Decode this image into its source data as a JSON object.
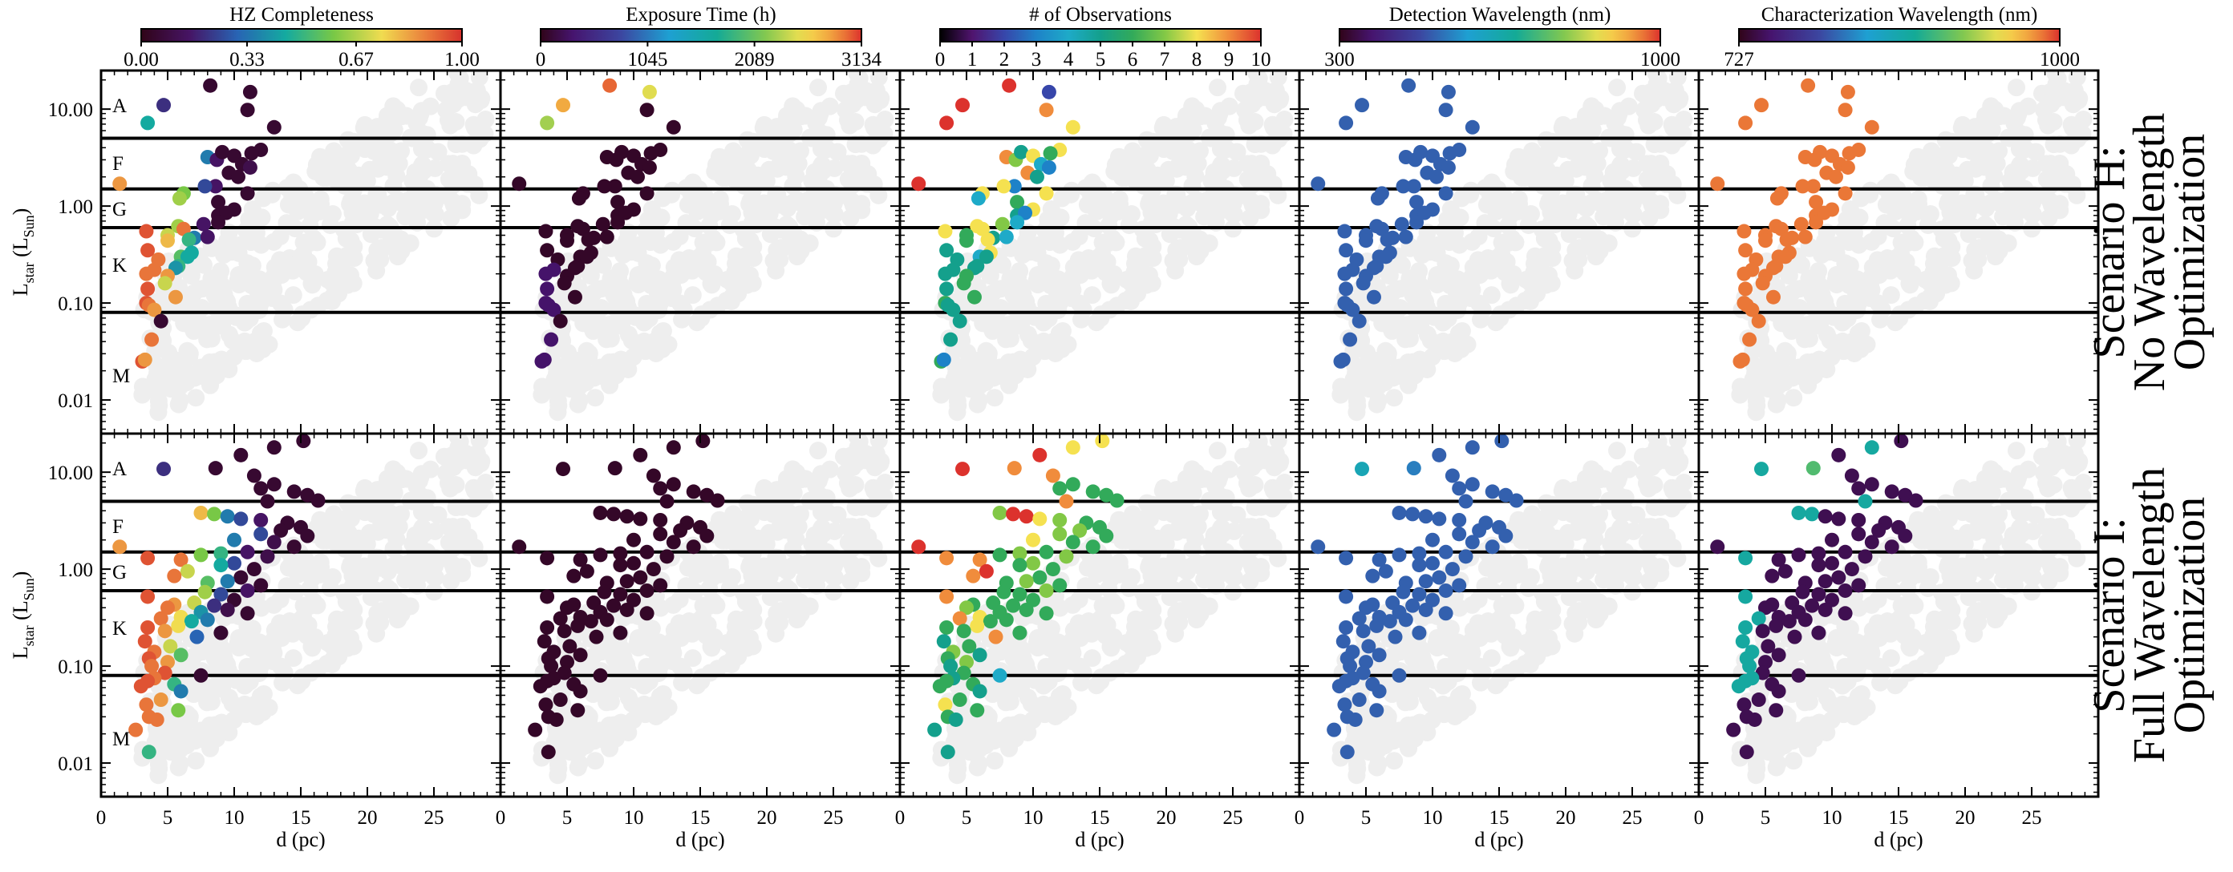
{
  "chart_data": {
    "type": "scatter",
    "description_axes": {
      "xlabel": "d (pc)",
      "ylabel_main": "L",
      "ylabel_star_sub": "star",
      "ylabel_unit_open": " (L",
      "ylabel_unit_sub": "Sun",
      "ylabel_unit_close": ")",
      "xlim": [
        0,
        30
      ],
      "ylim": [
        0.0045,
        25
      ],
      "yscale": "log",
      "x_ticks": [
        0,
        5,
        10,
        15,
        20,
        25
      ],
      "x_tick_labels": [
        "0",
        "5",
        "10",
        "15",
        "20",
        "25"
      ],
      "y_ticks": [
        10,
        1,
        0.1,
        0.01
      ],
      "y_tick_labels": [
        "10.00",
        "1.00",
        "0.10",
        "0.01"
      ]
    },
    "spectral_bands": {
      "boundaries_Lsun": [
        5.0,
        1.5,
        0.6,
        0.08
      ],
      "labels": [
        {
          "text": "A",
          "y": 11.0
        },
        {
          "text": "F",
          "y": 2.8
        },
        {
          "text": "G",
          "y": 0.95
        },
        {
          "text": "K",
          "y": 0.25
        },
        {
          "text": "M",
          "y": 0.018
        }
      ]
    },
    "rows": [
      {
        "title_lines": [
          "Scenario H:",
          "No Wavelength",
          "Optimization"
        ],
        "scenario": "H"
      },
      {
        "title_lines": [
          "Scenario I:",
          "Full Wavelength",
          "Optimization"
        ],
        "scenario": "I"
      }
    ],
    "panels": [
      {
        "title": "HZ Completeness",
        "colormap": "hzc",
        "range": [
          0,
          1
        ],
        "ticks": [
          "0.00",
          "0.33",
          "0.67",
          "1.00"
        ],
        "tick_values": [
          0,
          0.33,
          0.67,
          1.0
        ]
      },
      {
        "title": "Exposure Time (h)",
        "colormap": "rainbow",
        "range": [
          0,
          3134
        ],
        "ticks": [
          "0",
          "1045",
          "2089",
          "3134"
        ],
        "tick_values": [
          0,
          1045,
          2089,
          3134
        ]
      },
      {
        "title": "# of Observations",
        "colormap": "obs",
        "range": [
          0,
          10
        ],
        "ticks": [
          "0",
          "1",
          "2",
          "3",
          "4",
          "5",
          "6",
          "7",
          "8",
          "9",
          "10"
        ],
        "tick_values": [
          0,
          1,
          2,
          3,
          4,
          5,
          6,
          7,
          8,
          9,
          10
        ]
      },
      {
        "title": "Detection Wavelength (nm)",
        "colormap": "rainbow",
        "range": [
          300,
          1000
        ],
        "ticks": [
          "300",
          "1000"
        ],
        "tick_values": [
          300,
          1000
        ]
      },
      {
        "title": "Characterization Wavelength (nm)",
        "colormap": "rainbow",
        "range": [
          727,
          1000
        ],
        "ticks": [
          "727",
          "1000"
        ],
        "tick_values": [
          727,
          1000
        ]
      }
    ],
    "scenario_H_targets": {
      "d_pc": [
        8.2,
        11.2,
        4.7,
        3.5,
        11.0,
        13.0,
        12.0,
        11.3,
        8.0,
        8.7,
        9.1,
        10.0,
        10.6,
        11.2,
        1.4,
        9.6,
        10.3,
        8.6,
        11.0,
        7.8,
        6.2,
        5.9,
        8.8,
        10.0,
        8.8,
        9.4,
        3.4,
        8.8,
        5.8,
        7.7,
        6.2,
        5.0,
        7.0,
        6.6,
        8.0,
        5.0,
        6.8,
        6.0,
        6.5,
        4.3,
        5.8,
        3.5,
        5.6,
        5.0,
        4.0,
        3.4,
        4.8,
        3.5,
        5.6,
        3.4,
        3.6,
        4.0,
        4.5,
        3.8,
        3.1,
        3.3
      ],
      "L_sun": [
        17.5,
        15.0,
        11.0,
        7.2,
        9.8,
        6.5,
        3.8,
        3.5,
        3.2,
        3.0,
        3.6,
        3.3,
        2.7,
        2.5,
        1.7,
        2.2,
        2.0,
        1.6,
        1.35,
        1.6,
        1.35,
        1.2,
        1.1,
        0.92,
        0.8,
        0.85,
        0.55,
        0.68,
        0.62,
        0.65,
        0.58,
        0.5,
        0.47,
        0.45,
        0.48,
        0.44,
        0.33,
        0.3,
        0.3,
        0.28,
        0.24,
        0.35,
        0.23,
        0.19,
        0.22,
        0.2,
        0.16,
        0.14,
        0.115,
        0.1,
        0.095,
        0.085,
        0.065,
        0.042,
        0.025,
        0.026
      ],
      "hz_completeness": [
        0.05,
        0.05,
        0.2,
        0.45,
        0.05,
        0.05,
        0.05,
        0.05,
        0.35,
        0.15,
        0.05,
        0.05,
        0.05,
        0.1,
        0.85,
        0.05,
        0.05,
        0.15,
        0.05,
        0.25,
        0.6,
        0.65,
        0.05,
        0.05,
        0.05,
        0.05,
        0.95,
        0.05,
        0.65,
        0.15,
        0.9,
        0.7,
        0.35,
        0.5,
        0.15,
        0.8,
        0.45,
        0.55,
        0.45,
        0.9,
        0.5,
        0.95,
        0.4,
        0.85,
        0.9,
        0.9,
        0.7,
        0.95,
        0.85,
        0.95,
        0.9,
        0.85,
        0.05,
        0.9,
        0.95,
        0.85
      ],
      "exposure_time_h": [
        3000,
        2500,
        2800,
        2300,
        60,
        60,
        60,
        60,
        60,
        60,
        60,
        60,
        60,
        60,
        60,
        60,
        60,
        60,
        60,
        60,
        60,
        60,
        60,
        60,
        60,
        60,
        60,
        60,
        60,
        60,
        60,
        60,
        60,
        60,
        60,
        60,
        60,
        60,
        60,
        60,
        60,
        60,
        60,
        60,
        300,
        300,
        60,
        300,
        60,
        300,
        300,
        300,
        60,
        300,
        300,
        300
      ],
      "n_obs": [
        10,
        2,
        10,
        10,
        9,
        8,
        8,
        6,
        9,
        7,
        5,
        8,
        4,
        3,
        10,
        9,
        5,
        3,
        8,
        8,
        8,
        4,
        6,
        8,
        5,
        3,
        8,
        4,
        8,
        7,
        8,
        6,
        5,
        8,
        4,
        6,
        8,
        4,
        5,
        5,
        5,
        5,
        5,
        6,
        5,
        5,
        6,
        5,
        6,
        6,
        5,
        5,
        5,
        5,
        6,
        3
      ],
      "det_wavelength_nm": [
        505,
        505,
        505,
        505,
        505,
        505,
        505,
        505,
        505,
        505,
        505,
        505,
        505,
        505,
        505,
        505,
        505,
        505,
        505,
        505,
        505,
        505,
        505,
        505,
        505,
        505,
        505,
        505,
        505,
        505,
        505,
        505,
        505,
        505,
        505,
        505,
        505,
        505,
        505,
        505,
        505,
        505,
        505,
        505,
        505,
        505,
        505,
        505,
        505,
        505,
        505,
        505,
        505,
        505,
        505,
        505
      ],
      "char_wavelength_nm": [
        985,
        985,
        985,
        985,
        985,
        985,
        985,
        985,
        985,
        985,
        985,
        985,
        985,
        985,
        985,
        985,
        985,
        985,
        985,
        985,
        985,
        985,
        985,
        985,
        985,
        985,
        985,
        985,
        985,
        985,
        985,
        985,
        985,
        985,
        985,
        985,
        985,
        985,
        985,
        985,
        985,
        985,
        985,
        985,
        985,
        985,
        985,
        985,
        985,
        985,
        985,
        985,
        985,
        985,
        985,
        985
      ]
    },
    "scenario_I_targets": {
      "L_sun_boundaries_note": "same axes as scenario H",
      "d_pc": [
        15.2,
        13.0,
        10.5,
        8.6,
        4.7,
        11.5,
        13.0,
        12.0,
        14.5,
        15.5,
        16.3,
        12.5,
        7.5,
        8.5,
        9.5,
        10.5,
        12.0,
        14.0,
        1.4,
        3.5,
        15.0,
        15.5,
        13.5,
        12.0,
        13.0,
        10.0,
        14.5,
        11.0,
        9.0,
        12.5,
        7.5,
        6.0,
        10.0,
        9.0,
        11.5,
        6.5,
        5.5,
        10.5,
        9.5,
        8.0,
        12.0,
        11.0,
        7.8,
        9.0,
        3.5,
        10.0,
        7.0,
        5.5,
        8.5,
        5.0,
        9.5,
        7.5,
        11.0,
        6.0,
        4.5,
        8.0,
        6.8,
        5.8,
        3.5,
        4.8,
        9.0,
        7.2,
        3.3,
        5.2,
        4.0,
        6.0,
        3.6,
        5.0,
        3.8,
        4.8,
        7.5,
        4.0,
        3.5,
        5.5,
        3.0,
        6.0,
        4.5,
        3.4,
        5.8,
        3.6,
        4.2,
        2.6,
        3.6
      ],
      "L_sun": [
        21.0,
        18.0,
        15.0,
        11.0,
        10.8,
        9.2,
        7.5,
        6.8,
        6.3,
        5.8,
        5.1,
        5.0,
        3.8,
        3.7,
        3.5,
        3.3,
        3.2,
        3.0,
        1.7,
        1.3,
        2.7,
        2.2,
        2.5,
        2.3,
        1.9,
        2.0,
        1.7,
        1.5,
        1.45,
        1.35,
        1.4,
        1.25,
        1.15,
        1.1,
        1.0,
        0.95,
        0.85,
        0.82,
        0.75,
        0.72,
        0.68,
        0.6,
        0.58,
        0.55,
        0.52,
        0.48,
        0.45,
        0.43,
        0.42,
        0.4,
        0.38,
        0.36,
        0.35,
        0.32,
        0.31,
        0.3,
        0.29,
        0.26,
        0.25,
        0.23,
        0.22,
        0.2,
        0.18,
        0.16,
        0.14,
        0.13,
        0.12,
        0.11,
        0.1,
        0.085,
        0.08,
        0.075,
        0.07,
        0.065,
        0.062,
        0.055,
        0.045,
        0.04,
        0.035,
        0.03,
        0.028,
        0.022,
        0.013
      ],
      "hz_completeness": [
        0.05,
        0.05,
        0.05,
        0.05,
        0.2,
        0.05,
        0.05,
        0.05,
        0.05,
        0.05,
        0.05,
        0.05,
        0.8,
        0.6,
        0.35,
        0.25,
        0.15,
        0.05,
        0.85,
        0.95,
        0.05,
        0.05,
        0.05,
        0.25,
        0.1,
        0.35,
        0.05,
        0.15,
        0.5,
        0.1,
        0.6,
        0.9,
        0.25,
        0.45,
        0.05,
        0.7,
        0.9,
        0.05,
        0.35,
        0.55,
        0.05,
        0.15,
        0.65,
        0.25,
        0.95,
        0.05,
        0.7,
        0.85,
        0.2,
        0.9,
        0.1,
        0.4,
        0.05,
        0.75,
        0.9,
        0.35,
        0.45,
        0.75,
        0.95,
        0.85,
        0.05,
        0.3,
        0.95,
        0.7,
        0.9,
        0.55,
        0.95,
        0.85,
        0.9,
        0.95,
        0.05,
        0.9,
        0.95,
        0.5,
        0.95,
        0.35,
        0.85,
        0.9,
        0.6,
        0.9,
        0.9,
        0.9,
        0.5
      ],
      "exposure_time_h": [
        60,
        60,
        60,
        60,
        60,
        60,
        60,
        60,
        60,
        60,
        60,
        60,
        60,
        60,
        60,
        60,
        60,
        60,
        60,
        60,
        60,
        60,
        60,
        60,
        60,
        60,
        60,
        60,
        60,
        60,
        60,
        60,
        60,
        60,
        60,
        60,
        60,
        60,
        60,
        60,
        60,
        60,
        60,
        60,
        60,
        60,
        60,
        60,
        60,
        60,
        60,
        60,
        60,
        60,
        60,
        60,
        60,
        60,
        60,
        60,
        60,
        60,
        60,
        60,
        60,
        60,
        60,
        60,
        60,
        60,
        60,
        60,
        60,
        60,
        60,
        60,
        60,
        60,
        60,
        60,
        60,
        60,
        60
      ],
      "n_obs": [
        8,
        8,
        10,
        9,
        10,
        9,
        6,
        6,
        6,
        6,
        6,
        9,
        7,
        10,
        10,
        8,
        7,
        6,
        10,
        9,
        6,
        6,
        7,
        7,
        6,
        8,
        6,
        6,
        7,
        7,
        6,
        9,
        7,
        6,
        6,
        10,
        9,
        6,
        7,
        6,
        6,
        7,
        6,
        6,
        9,
        6,
        6,
        6,
        6,
        7,
        6,
        6,
        6,
        8,
        9,
        6,
        6,
        8,
        6,
        6,
        6,
        9,
        5,
        6,
        7,
        5,
        6,
        7,
        5,
        6,
        4,
        5,
        6,
        6,
        6,
        5,
        6,
        8,
        6,
        6,
        5,
        5,
        5
      ],
      "det_wavelength_nm": [
        505,
        505,
        505,
        540,
        630,
        505,
        505,
        505,
        505,
        505,
        505,
        505,
        505,
        505,
        505,
        505,
        505,
        505,
        505,
        505,
        505,
        505,
        505,
        505,
        505,
        505,
        505,
        505,
        505,
        505,
        505,
        505,
        505,
        505,
        505,
        505,
        505,
        505,
        505,
        505,
        505,
        505,
        505,
        505,
        505,
        505,
        505,
        505,
        505,
        505,
        505,
        505,
        505,
        505,
        505,
        505,
        505,
        505,
        505,
        505,
        505,
        505,
        505,
        505,
        505,
        505,
        505,
        505,
        505,
        505,
        505,
        505,
        505,
        505,
        505,
        505,
        505,
        505,
        505,
        505,
        505,
        505,
        505
      ],
      "char_wavelength_nm": [
        745,
        870,
        745,
        900,
        870,
        745,
        745,
        745,
        745,
        745,
        745,
        870,
        870,
        870,
        745,
        745,
        745,
        745,
        745,
        870,
        745,
        745,
        745,
        745,
        745,
        745,
        745,
        745,
        745,
        745,
        745,
        745,
        745,
        745,
        745,
        745,
        745,
        745,
        745,
        745,
        745,
        745,
        745,
        745,
        870,
        745,
        745,
        745,
        745,
        745,
        745,
        745,
        745,
        745,
        870,
        745,
        745,
        745,
        870,
        745,
        745,
        745,
        870,
        745,
        870,
        745,
        870,
        745,
        870,
        745,
        745,
        870,
        870,
        745,
        870,
        745,
        745,
        745,
        745,
        745,
        745,
        745,
        745
      ]
    }
  }
}
